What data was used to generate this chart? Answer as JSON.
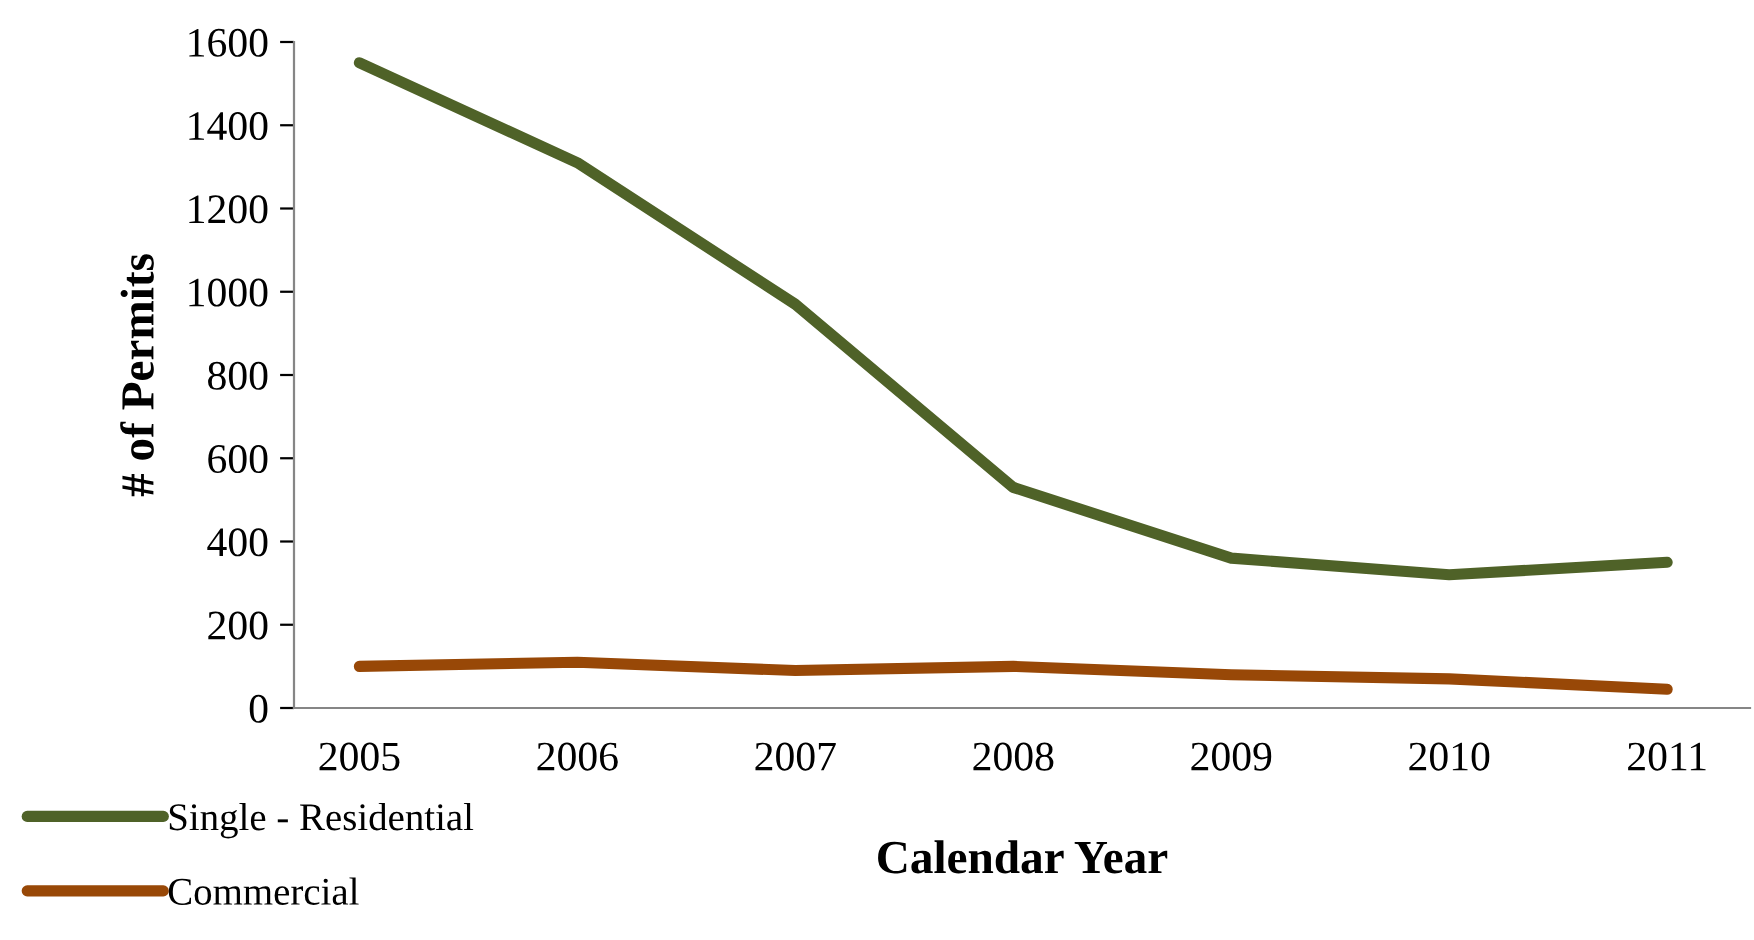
{
  "chart_data": {
    "type": "line",
    "xlabel": "Calendar Year",
    "ylabel": "# of Permits",
    "categories": [
      "2005",
      "2006",
      "2007",
      "2008",
      "2009",
      "2010",
      "2011"
    ],
    "series": [
      {
        "name": "Single - Residential",
        "color": "#4f6228",
        "values": [
          1550,
          1310,
          970,
          530,
          360,
          320,
          350
        ]
      },
      {
        "name": "Commercial",
        "color": "#984807",
        "values": [
          100,
          110,
          90,
          100,
          80,
          70,
          45
        ]
      }
    ],
    "ylim": [
      0,
      1600
    ],
    "yticks": [
      0,
      200,
      400,
      600,
      800,
      1000,
      1200,
      1400,
      1600
    ],
    "grid": false,
    "legend": "bottom left",
    "marker": "none",
    "line_style": "solid"
  }
}
